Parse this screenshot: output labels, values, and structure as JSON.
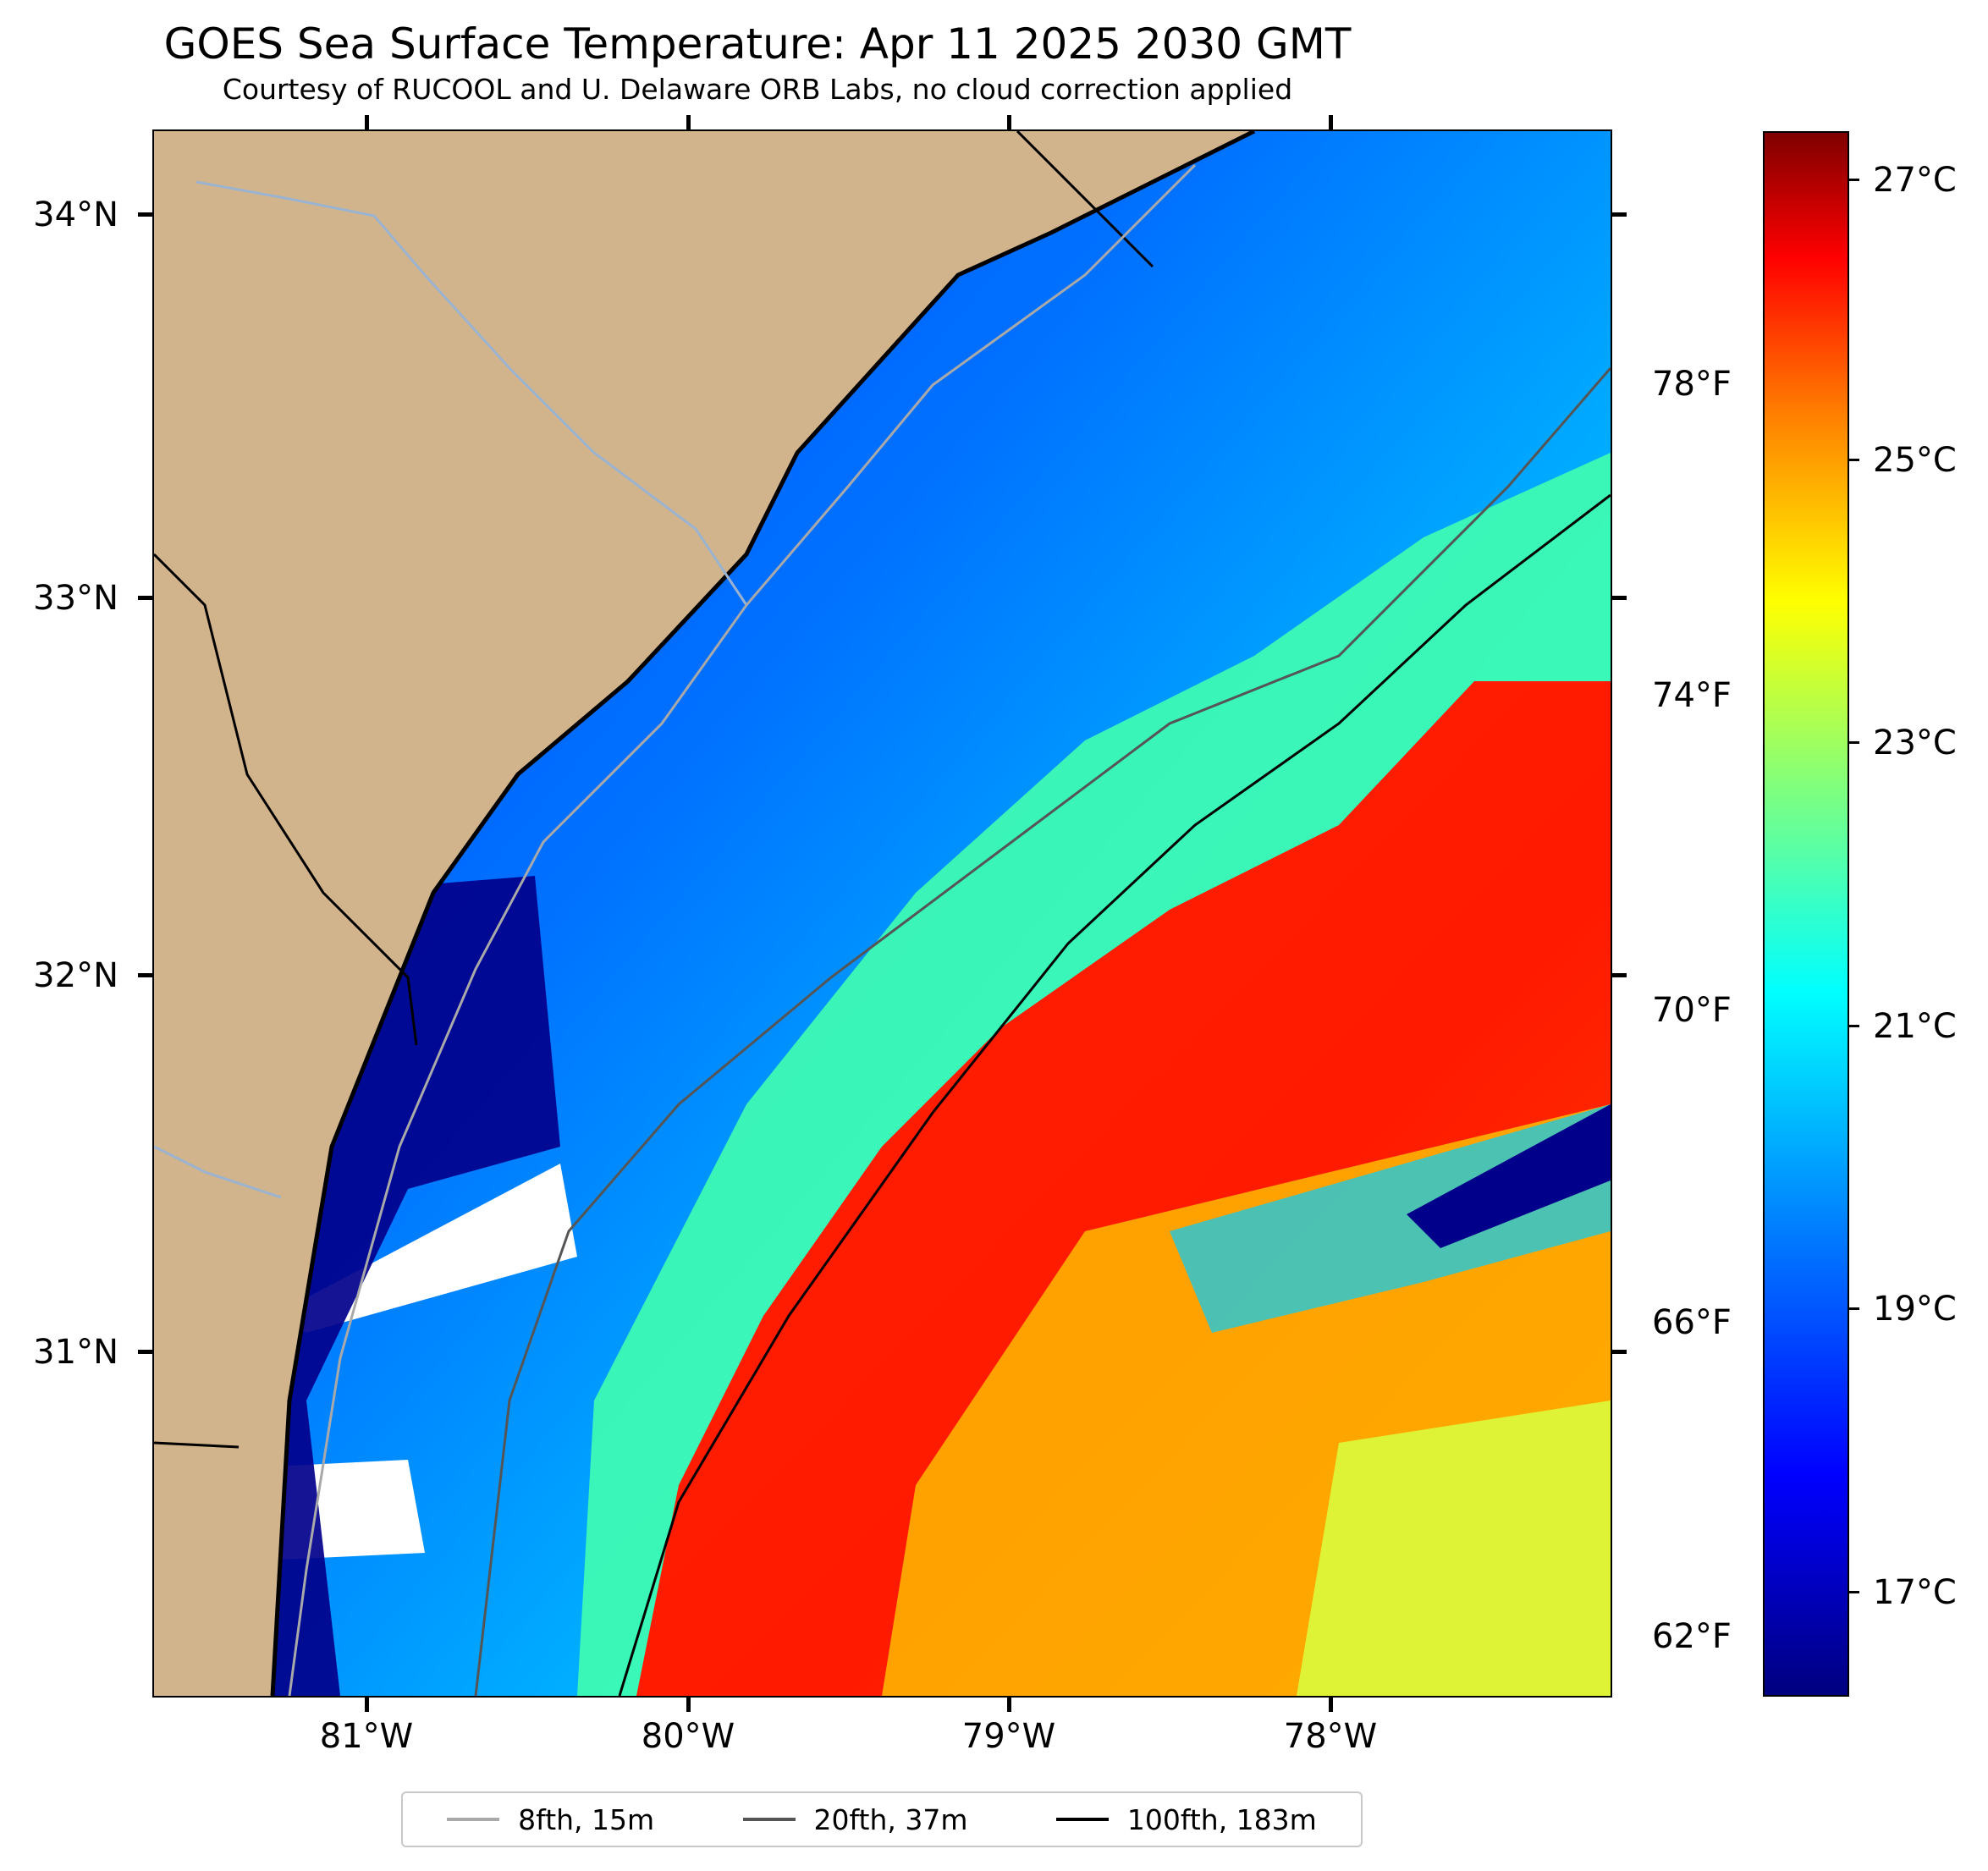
{
  "title": "GOES Sea Surface Temperature: Apr 11 2025 2030 GMT",
  "subtitle": "Courtesy of RUCOOL and U. Delaware ORB Labs, no cloud correction applied",
  "map": {
    "lat_ticks": [
      "34°N",
      "33°N",
      "32°N",
      "31°N"
    ],
    "lon_ticks": [
      "81°W",
      "80°W",
      "79°W",
      "78°W"
    ],
    "land_color": "#d2b48c",
    "cloud_color": "#ffffff"
  },
  "legend": {
    "items": [
      {
        "label": "8fth, 15m",
        "color": "#a9a9a9"
      },
      {
        "label": "20fth, 37m",
        "color": "#555555"
      },
      {
        "label": "100fth, 183m",
        "color": "#000000"
      }
    ]
  },
  "colorbar": {
    "colormap": "jet",
    "celsius_ticks": [
      "27°C",
      "25°C",
      "23°C",
      "21°C",
      "19°C",
      "17°C"
    ],
    "fahrenheit_ticks": [
      "78°F",
      "74°F",
      "70°F",
      "66°F",
      "62°F"
    ]
  }
}
